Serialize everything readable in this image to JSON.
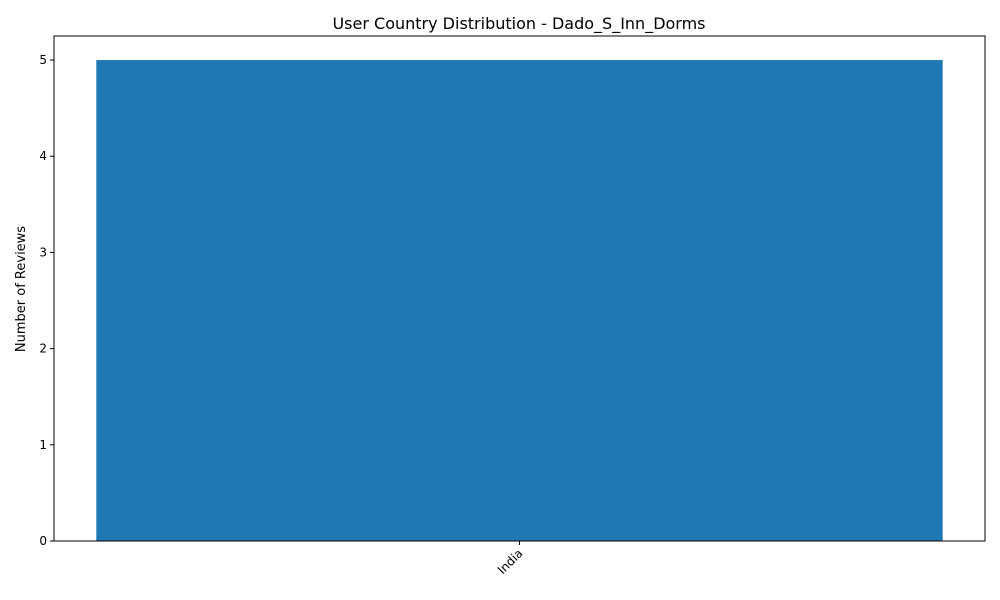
{
  "chart_data": {
    "type": "bar",
    "title": "User Country Distribution - Dado_S_Inn_Dorms",
    "xlabel": "",
    "ylabel": "Number of Reviews",
    "categories": [
      "India"
    ],
    "values": [
      5
    ],
    "ylim": [
      0,
      5.25
    ],
    "yticks": [
      0,
      1,
      2,
      3,
      4,
      5
    ],
    "x_tick_rotation_deg": 45,
    "grid": false,
    "legend": "none",
    "bar_color": "#1f77b4"
  }
}
